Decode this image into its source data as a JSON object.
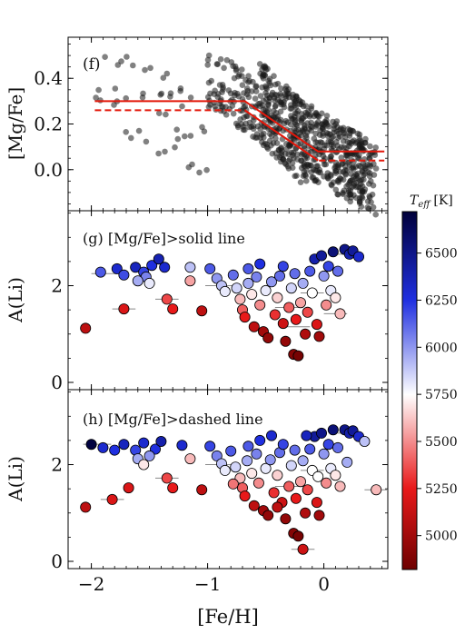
{
  "chart_data": [
    {
      "panel": "f",
      "type": "scatter",
      "label": "(f)",
      "xlim": [
        -2.2,
        0.55
      ],
      "ylim": [
        -0.18,
        0.58
      ],
      "yticks": [
        0.0,
        0.2,
        0.4
      ],
      "ylabel": "[Mg/Fe]",
      "point_color": "#1a1a1a",
      "point_alpha": 0.55,
      "cloud": [
        {
          "x": [
            -2.0,
            -1.0
          ],
          "y": [
            0.05,
            0.52
          ],
          "n": 45,
          "seed": 11
        },
        {
          "x": [
            -1.0,
            -0.55
          ],
          "y": [
            0.18,
            0.48
          ],
          "n": 110,
          "seed": 21
        },
        {
          "x": [
            -0.55,
            -0.15
          ],
          "y": [
            0.0,
            0.4
          ],
          "n": 260,
          "seed": 31
        },
        {
          "x": [
            -0.15,
            0.45
          ],
          "y": [
            -0.14,
            0.22
          ],
          "n": 330,
          "seed": 41
        }
      ],
      "lines": [
        {
          "style": "solid",
          "color": "#e3170a",
          "x": [
            -1.97,
            -0.68,
            -0.05,
            0.52
          ],
          "y": [
            0.3,
            0.3,
            0.08,
            0.08
          ]
        },
        {
          "style": "solid",
          "color": "#e3170a",
          "x": [
            -0.68,
            -0.05
          ],
          "y": [
            0.26,
            0.04
          ]
        },
        {
          "style": "dashed",
          "color": "#e3170a",
          "x": [
            -1.97,
            -0.68,
            -0.05,
            0.52
          ],
          "y": [
            0.26,
            0.26,
            0.04,
            0.04
          ]
        }
      ]
    },
    {
      "panel": "g",
      "type": "scatter",
      "label": "(g) [Mg/Fe]>solid line",
      "xlim": [
        -2.2,
        0.55
      ],
      "ylim": [
        -0.15,
        3.55
      ],
      "yticks": [
        0,
        2
      ],
      "ylabel": "A(Li)",
      "color_by": "Teff",
      "points": [
        {
          "x": -1.92,
          "y": 2.28,
          "t": 6150
        },
        {
          "x": -1.78,
          "y": 2.35,
          "t": 6300
        },
        {
          "x": -1.72,
          "y": 2.22,
          "t": 6180
        },
        {
          "x": -1.62,
          "y": 2.38,
          "t": 6350
        },
        {
          "x": -1.55,
          "y": 2.28,
          "t": 6200
        },
        {
          "x": -1.48,
          "y": 2.42,
          "t": 6250
        },
        {
          "x": -1.42,
          "y": 2.55,
          "t": 6380
        },
        {
          "x": -1.37,
          "y": 2.38,
          "t": 6300
        },
        {
          "x": -1.53,
          "y": 2.18,
          "t": 6050
        },
        {
          "x": -1.5,
          "y": 2.05,
          "t": 5800
        },
        {
          "x": -1.6,
          "y": 2.1,
          "t": 5950
        },
        {
          "x": -1.15,
          "y": 2.38,
          "t": 5900
        },
        {
          "x": -1.15,
          "y": 2.1,
          "t": 5550
        },
        {
          "x": -2.05,
          "y": 1.12,
          "t": 5100
        },
        {
          "x": -1.72,
          "y": 1.52,
          "t": 5200
        },
        {
          "x": -1.35,
          "y": 1.72,
          "t": 5350
        },
        {
          "x": -1.3,
          "y": 1.52,
          "t": 5250
        },
        {
          "x": -1.05,
          "y": 1.48,
          "t": 5100
        },
        {
          "x": -0.98,
          "y": 2.35,
          "t": 6150
        },
        {
          "x": -0.92,
          "y": 2.15,
          "t": 6000
        },
        {
          "x": -0.88,
          "y": 2.0,
          "t": 5900
        },
        {
          "x": -0.85,
          "y": 1.88,
          "t": 5800
        },
        {
          "x": -0.78,
          "y": 2.22,
          "t": 6100
        },
        {
          "x": -0.75,
          "y": 1.95,
          "t": 5850
        },
        {
          "x": -0.72,
          "y": 1.72,
          "t": 5600
        },
        {
          "x": -0.7,
          "y": 1.5,
          "t": 5400
        },
        {
          "x": -0.68,
          "y": 1.35,
          "t": 5250
        },
        {
          "x": -0.65,
          "y": 2.05,
          "t": 5950
        },
        {
          "x": -0.62,
          "y": 1.82,
          "t": 5700
        },
        {
          "x": -0.6,
          "y": 1.15,
          "t": 5100
        },
        {
          "x": -0.58,
          "y": 2.18,
          "t": 6050
        },
        {
          "x": -0.55,
          "y": 1.6,
          "t": 5500
        },
        {
          "x": -0.52,
          "y": 1.05,
          "t": 5000
        },
        {
          "x": -0.5,
          "y": 1.9,
          "t": 5800
        },
        {
          "x": -0.48,
          "y": 0.92,
          "t": 4950
        },
        {
          "x": -0.45,
          "y": 2.08,
          "t": 6000
        },
        {
          "x": -0.42,
          "y": 1.4,
          "t": 5300
        },
        {
          "x": -0.4,
          "y": 1.75,
          "t": 5650
        },
        {
          "x": -0.38,
          "y": 2.2,
          "t": 6100
        },
        {
          "x": -0.35,
          "y": 1.22,
          "t": 5150
        },
        {
          "x": -0.33,
          "y": 0.85,
          "t": 4950
        },
        {
          "x": -0.3,
          "y": 1.55,
          "t": 5400
        },
        {
          "x": -0.28,
          "y": 1.95,
          "t": 5850
        },
        {
          "x": -0.26,
          "y": 0.58,
          "t": 4900
        },
        {
          "x": -0.24,
          "y": 1.3,
          "t": 5250
        },
        {
          "x": -0.22,
          "y": 0.55,
          "t": 4850
        },
        {
          "x": -0.2,
          "y": 1.65,
          "t": 5550
        },
        {
          "x": -0.18,
          "y": 2.05,
          "t": 5950
        },
        {
          "x": -0.16,
          "y": 1.0,
          "t": 5050
        },
        {
          "x": -0.14,
          "y": 1.45,
          "t": 5350
        },
        {
          "x": -0.12,
          "y": 2.3,
          "t": 6150
        },
        {
          "x": -0.1,
          "y": 1.85,
          "t": 5750
        },
        {
          "x": -0.08,
          "y": 2.55,
          "t": 6400
        },
        {
          "x": -0.06,
          "y": 1.2,
          "t": 5200
        },
        {
          "x": -0.04,
          "y": 0.95,
          "t": 5000
        },
        {
          "x": -0.02,
          "y": 2.62,
          "t": 6450
        },
        {
          "x": 0.0,
          "y": 2.2,
          "t": 6000
        },
        {
          "x": 0.02,
          "y": 1.6,
          "t": 5500
        },
        {
          "x": 0.04,
          "y": 2.4,
          "t": 6200
        },
        {
          "x": 0.06,
          "y": 1.9,
          "t": 5800
        },
        {
          "x": 0.08,
          "y": 2.7,
          "t": 6550
        },
        {
          "x": 0.1,
          "y": 1.75,
          "t": 5700
        },
        {
          "x": 0.12,
          "y": 2.3,
          "t": 6100
        },
        {
          "x": 0.14,
          "y": 1.42,
          "t": 5600
        },
        {
          "x": 0.18,
          "y": 2.75,
          "t": 6500
        },
        {
          "x": 0.22,
          "y": 2.65,
          "t": 6400
        },
        {
          "x": 0.25,
          "y": 2.72,
          "t": 6450
        },
        {
          "x": 0.3,
          "y": 2.6,
          "t": 6300
        },
        {
          "x": -0.55,
          "y": 2.45,
          "t": 6250
        },
        {
          "x": -0.35,
          "y": 2.4,
          "t": 6200
        },
        {
          "x": -0.65,
          "y": 2.35,
          "t": 6150
        },
        {
          "x": -0.25,
          "y": 2.25,
          "t": 6100
        }
      ],
      "bars": [
        {
          "x": -1.88,
          "y": 2.25,
          "w": 0.12
        },
        {
          "x": -1.72,
          "y": 1.52,
          "w": 0.1
        },
        {
          "x": -1.35,
          "y": 1.72,
          "w": 0.1
        },
        {
          "x": -0.9,
          "y": 2.0,
          "w": 0.12
        },
        {
          "x": -0.1,
          "y": 1.85,
          "w": 0.1
        },
        {
          "x": 0.1,
          "y": 1.42,
          "w": 0.1
        },
        {
          "x": -0.3,
          "y": 1.55,
          "w": 0.12
        },
        {
          "x": 0.22,
          "y": 2.65,
          "w": 0.1
        },
        {
          "x": -0.22,
          "y": 1.15,
          "w": 0.1
        }
      ]
    },
    {
      "panel": "h",
      "type": "scatter",
      "label": "(h) [Mg/Fe]>dashed line",
      "xlim": [
        -2.2,
        0.55
      ],
      "xticks": [
        -2,
        -1,
        0
      ],
      "xlabel": "[Fe/H]",
      "ylim": [
        -0.15,
        3.55
      ],
      "yticks": [
        0,
        2
      ],
      "ylabel": "A(Li)",
      "color_by": "Teff",
      "points": [
        {
          "x": -2.0,
          "y": 2.42,
          "t": 6700
        },
        {
          "x": -1.9,
          "y": 2.35,
          "t": 6300
        },
        {
          "x": -1.8,
          "y": 2.3,
          "t": 6250
        },
        {
          "x": -1.72,
          "y": 2.42,
          "t": 6350
        },
        {
          "x": -1.62,
          "y": 2.3,
          "t": 6200
        },
        {
          "x": -1.55,
          "y": 2.45,
          "t": 6300
        },
        {
          "x": -1.45,
          "y": 2.32,
          "t": 6250
        },
        {
          "x": -1.4,
          "y": 2.48,
          "t": 6400
        },
        {
          "x": -1.22,
          "y": 2.4,
          "t": 6300
        },
        {
          "x": -1.5,
          "y": 2.18,
          "t": 6000
        },
        {
          "x": -1.6,
          "y": 2.12,
          "t": 5950
        },
        {
          "x": -1.55,
          "y": 2.0,
          "t": 5700
        },
        {
          "x": -1.15,
          "y": 2.12,
          "t": 5600
        },
        {
          "x": -2.05,
          "y": 1.12,
          "t": 5100
        },
        {
          "x": -1.82,
          "y": 1.28,
          "t": 5200
        },
        {
          "x": -1.68,
          "y": 1.52,
          "t": 5200
        },
        {
          "x": -1.35,
          "y": 1.72,
          "t": 5350
        },
        {
          "x": -1.3,
          "y": 1.52,
          "t": 5250
        },
        {
          "x": -1.05,
          "y": 1.48,
          "t": 5100
        },
        {
          "x": -0.98,
          "y": 2.38,
          "t": 6200
        },
        {
          "x": -0.92,
          "y": 2.18,
          "t": 6050
        },
        {
          "x": -0.88,
          "y": 2.02,
          "t": 5900
        },
        {
          "x": -0.85,
          "y": 1.88,
          "t": 5800
        },
        {
          "x": -0.8,
          "y": 2.28,
          "t": 6150
        },
        {
          "x": -0.76,
          "y": 1.95,
          "t": 5850
        },
        {
          "x": -0.72,
          "y": 1.72,
          "t": 5600
        },
        {
          "x": -0.7,
          "y": 1.52,
          "t": 5400
        },
        {
          "x": -0.68,
          "y": 1.35,
          "t": 5250
        },
        {
          "x": -0.66,
          "y": 2.08,
          "t": 5950
        },
        {
          "x": -0.62,
          "y": 1.82,
          "t": 5700
        },
        {
          "x": -0.6,
          "y": 1.15,
          "t": 5100
        },
        {
          "x": -0.58,
          "y": 2.22,
          "t": 6050
        },
        {
          "x": -0.56,
          "y": 1.62,
          "t": 5500
        },
        {
          "x": -0.52,
          "y": 1.05,
          "t": 5000
        },
        {
          "x": -0.5,
          "y": 1.92,
          "t": 5800
        },
        {
          "x": -0.48,
          "y": 0.95,
          "t": 4950
        },
        {
          "x": -0.46,
          "y": 2.1,
          "t": 6000
        },
        {
          "x": -0.43,
          "y": 1.42,
          "t": 5300
        },
        {
          "x": -0.4,
          "y": 1.78,
          "t": 5650
        },
        {
          "x": -0.38,
          "y": 2.25,
          "t": 6100
        },
        {
          "x": -0.36,
          "y": 1.22,
          "t": 5150
        },
        {
          "x": -0.33,
          "y": 0.88,
          "t": 4950
        },
        {
          "x": -0.3,
          "y": 1.55,
          "t": 5400
        },
        {
          "x": -0.28,
          "y": 1.98,
          "t": 5850
        },
        {
          "x": -0.26,
          "y": 0.58,
          "t": 4900
        },
        {
          "x": -0.24,
          "y": 1.3,
          "t": 5250
        },
        {
          "x": -0.22,
          "y": 0.52,
          "t": 4850
        },
        {
          "x": -0.2,
          "y": 1.65,
          "t": 5550
        },
        {
          "x": -0.18,
          "y": 2.08,
          "t": 5950
        },
        {
          "x": -0.16,
          "y": 1.0,
          "t": 5050
        },
        {
          "x": -0.14,
          "y": 1.48,
          "t": 5350
        },
        {
          "x": -0.12,
          "y": 2.32,
          "t": 6150
        },
        {
          "x": -0.1,
          "y": 1.88,
          "t": 5750
        },
        {
          "x": -0.08,
          "y": 2.58,
          "t": 6450
        },
        {
          "x": -0.06,
          "y": 1.22,
          "t": 5200
        },
        {
          "x": -0.04,
          "y": 0.95,
          "t": 5000
        },
        {
          "x": -0.02,
          "y": 2.65,
          "t": 6500
        },
        {
          "x": 0.0,
          "y": 2.22,
          "t": 6000
        },
        {
          "x": 0.02,
          "y": 1.62,
          "t": 5500
        },
        {
          "x": 0.04,
          "y": 2.42,
          "t": 6200
        },
        {
          "x": 0.06,
          "y": 1.92,
          "t": 5800
        },
        {
          "x": 0.08,
          "y": 2.72,
          "t": 6550
        },
        {
          "x": 0.1,
          "y": 1.78,
          "t": 5700
        },
        {
          "x": 0.12,
          "y": 2.35,
          "t": 6100
        },
        {
          "x": 0.14,
          "y": 1.55,
          "t": 5600
        },
        {
          "x": 0.18,
          "y": 2.72,
          "t": 6500
        },
        {
          "x": 0.22,
          "y": 2.65,
          "t": 6400
        },
        {
          "x": 0.25,
          "y": 2.7,
          "t": 6450
        },
        {
          "x": 0.3,
          "y": 2.58,
          "t": 6300
        },
        {
          "x": 0.35,
          "y": 2.48,
          "t": 5900
        },
        {
          "x": 0.45,
          "y": 1.48,
          "t": 5600
        },
        {
          "x": -0.18,
          "y": 0.25,
          "t": 5150
        },
        {
          "x": -0.55,
          "y": 2.5,
          "t": 6250
        },
        {
          "x": -0.35,
          "y": 2.42,
          "t": 6200
        },
        {
          "x": -0.65,
          "y": 2.38,
          "t": 6150
        },
        {
          "x": -0.25,
          "y": 2.3,
          "t": 6100
        },
        {
          "x": -0.45,
          "y": 2.6,
          "t": 6300
        },
        {
          "x": -0.15,
          "y": 2.6,
          "t": 6350
        },
        {
          "x": -0.4,
          "y": 1.12,
          "t": 5100
        },
        {
          "x": -0.05,
          "y": 1.75,
          "t": 5750
        },
        {
          "x": 0.2,
          "y": 2.05,
          "t": 5950
        },
        {
          "x": -0.78,
          "y": 1.6,
          "t": 5450
        }
      ],
      "bars": [
        {
          "x": -1.95,
          "y": 2.42,
          "w": 0.12
        },
        {
          "x": -1.82,
          "y": 1.28,
          "w": 0.1
        },
        {
          "x": -1.35,
          "y": 1.72,
          "w": 0.1
        },
        {
          "x": -0.9,
          "y": 2.0,
          "w": 0.12
        },
        {
          "x": -0.1,
          "y": 1.88,
          "w": 0.1
        },
        {
          "x": 0.45,
          "y": 1.48,
          "w": 0.1
        },
        {
          "x": -0.3,
          "y": 1.55,
          "w": 0.12
        },
        {
          "x": 0.22,
          "y": 2.65,
          "w": 0.1
        },
        {
          "x": -0.18,
          "y": 0.25,
          "w": 0.1
        }
      ]
    }
  ],
  "colorbar": {
    "label": "T",
    "label_sub": "eff",
    "label_unit": "[K]",
    "min": 4820,
    "max": 6720,
    "ticks": [
      5000,
      5250,
      5500,
      5750,
      6000,
      6250,
      6500
    ],
    "stops": [
      {
        "v": 4820,
        "c": "#6e0000"
      },
      {
        "v": 5250,
        "c": "#e8191a"
      },
      {
        "v": 5750,
        "c": "#ffffff"
      },
      {
        "v": 6250,
        "c": "#1f2fe0"
      },
      {
        "v": 6720,
        "c": "#00003a"
      }
    ]
  }
}
